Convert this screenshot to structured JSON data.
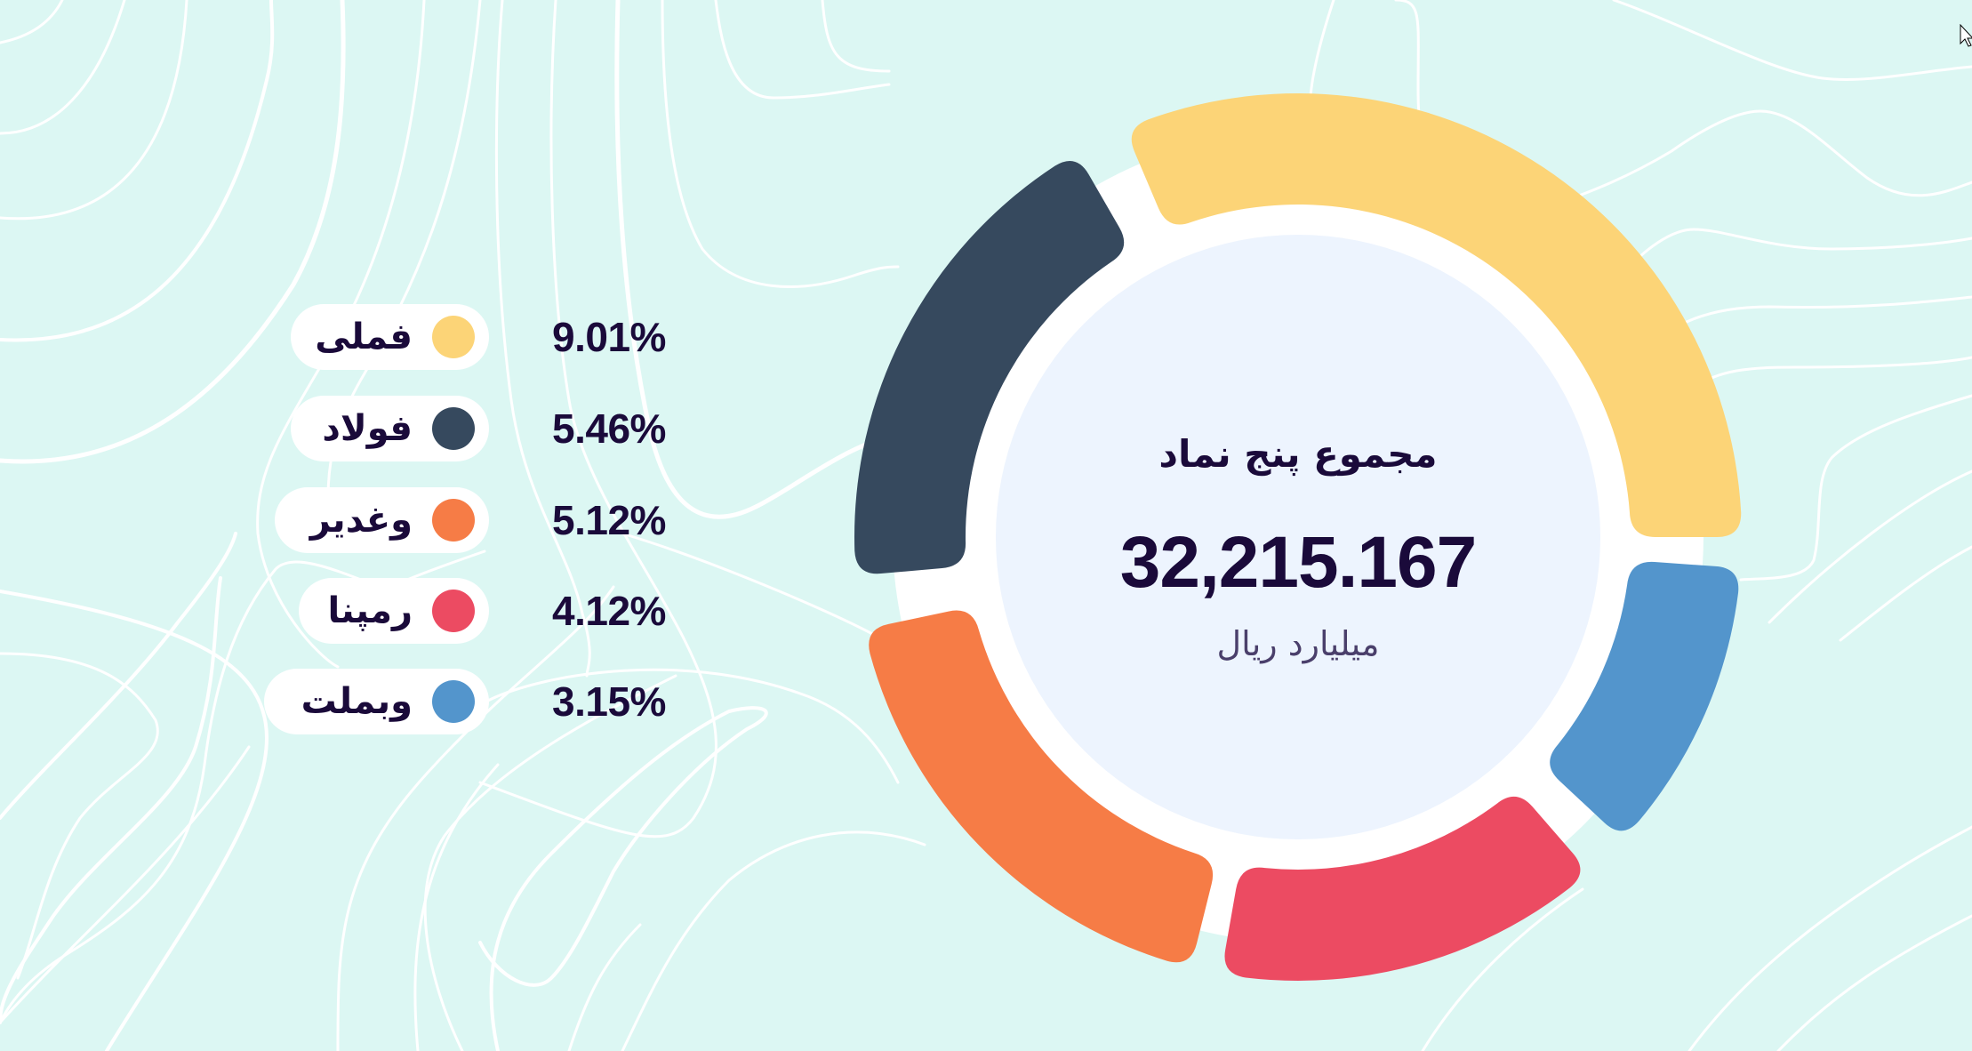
{
  "chart_data": {
    "type": "pie",
    "variant": "donut",
    "title": "مجموع پنج نماد",
    "total_value": "32,215.167",
    "total_unit": "میلیارد ریال",
    "categories": [
      "فملی",
      "فولاد",
      "وغدیر",
      "رمپنا",
      "وبملت"
    ],
    "values": [
      9.01,
      5.46,
      5.12,
      4.12,
      3.15
    ],
    "value_labels": [
      "9.01%",
      "5.46%",
      "5.12%",
      "4.12%",
      "3.15%"
    ],
    "colors": [
      "#FCD477",
      "#36495E",
      "#F67C46",
      "#EC4B62",
      "#5395CC"
    ],
    "legend_position": "left",
    "segments": [
      {
        "name": "فملی",
        "color": "#FCD477",
        "start_deg": 337,
        "end_deg": 450
      },
      {
        "name": "وبملت",
        "color": "#5395CC",
        "start_deg": 94,
        "end_deg": 133
      },
      {
        "name": "رمپنا",
        "color": "#EC4B62",
        "start_deg": 139,
        "end_deg": 190
      },
      {
        "name": "وغدیر",
        "color": "#F67C46",
        "start_deg": 194,
        "end_deg": 258
      },
      {
        "name": "فولاد",
        "color": "#36495E",
        "start_deg": 265,
        "end_deg": 330
      }
    ]
  },
  "legend": [
    {
      "label": "فملی",
      "value": "9.01%",
      "color": "#FCD477"
    },
    {
      "label": "فولاد",
      "value": "5.46%",
      "color": "#36495E"
    },
    {
      "label": "وغدیر",
      "value": "5.12%",
      "color": "#F67C46"
    },
    {
      "label": "رمپنا",
      "value": "4.12%",
      "color": "#EC4B62"
    },
    {
      "label": "وبملت",
      "value": "3.15%",
      "color": "#5395CC"
    }
  ],
  "center": {
    "title": "مجموع پنج نماد",
    "value": "32,215.167",
    "unit": "میلیارد ریال"
  },
  "colors": {
    "background": "#DCF7F3",
    "inner_disc": "#EDF4FE",
    "text": "#1A0A3A",
    "unit_text": "#4A3F6B"
  }
}
